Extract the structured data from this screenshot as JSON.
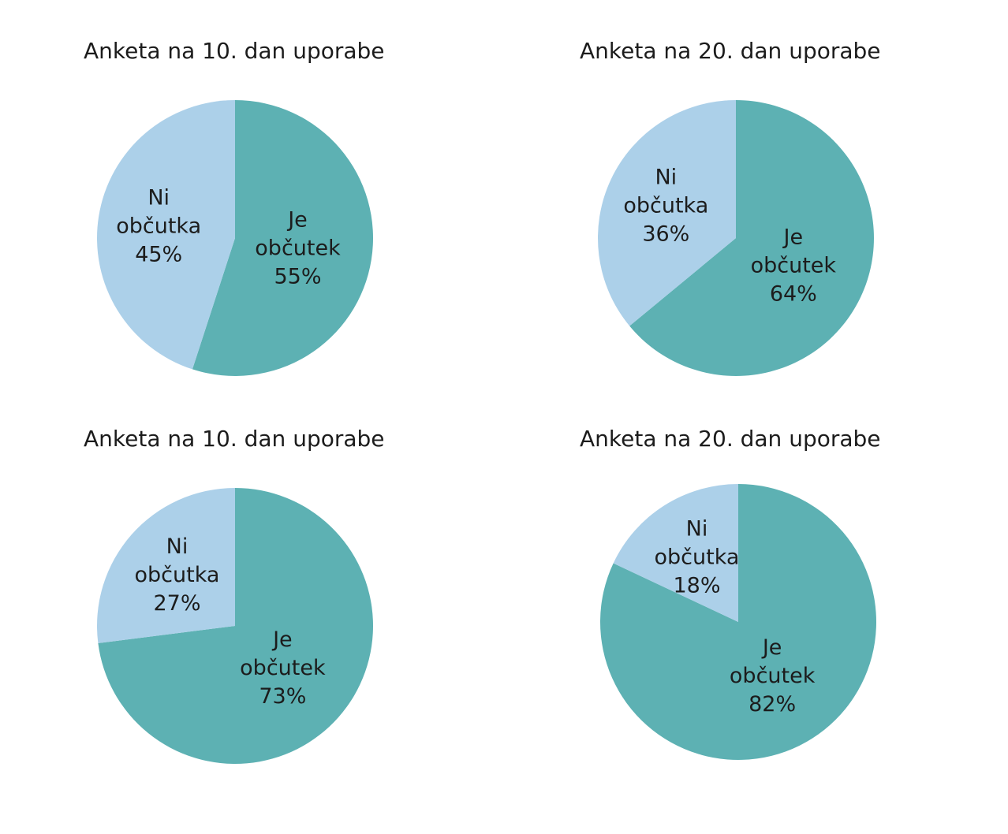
{
  "colors": {
    "je_obcutek": "#5db1b3",
    "ni_obcutka": "#acd0e9",
    "text": "#1c1c1c"
  },
  "chart_data": [
    {
      "type": "pie",
      "title": "Anketa na 10. dan uporabe",
      "slices": [
        {
          "label": [
            "Je",
            "občutek",
            "55%"
          ],
          "value": 55,
          "color": "#5db1b3"
        },
        {
          "label": [
            "Ni",
            "občutka",
            "45%"
          ],
          "value": 45,
          "color": "#acd0e9"
        }
      ]
    },
    {
      "type": "pie",
      "title": "Anketa na 20. dan uporabe",
      "slices": [
        {
          "label": [
            "Je",
            "občutek",
            "64%"
          ],
          "value": 64,
          "color": "#5db1b3"
        },
        {
          "label": [
            "Ni",
            "občutka",
            "36%"
          ],
          "value": 36,
          "color": "#acd0e9"
        }
      ]
    },
    {
      "type": "pie",
      "title": "Anketa na 10. dan uporabe",
      "slices": [
        {
          "label": [
            "Je",
            "občutek",
            "73%"
          ],
          "value": 73,
          "color": "#5db1b3"
        },
        {
          "label": [
            "Ni",
            "občutka",
            "27%"
          ],
          "value": 27,
          "color": "#acd0e9"
        }
      ]
    },
    {
      "type": "pie",
      "title": "Anketa na 20. dan uporabe",
      "slices": [
        {
          "label": [
            "Je",
            "občutek",
            "82%"
          ],
          "value": 82,
          "color": "#5db1b3"
        },
        {
          "label": [
            "Ni",
            "občutka",
            "18%"
          ],
          "value": 18,
          "color": "#acd0e9"
        }
      ]
    }
  ]
}
